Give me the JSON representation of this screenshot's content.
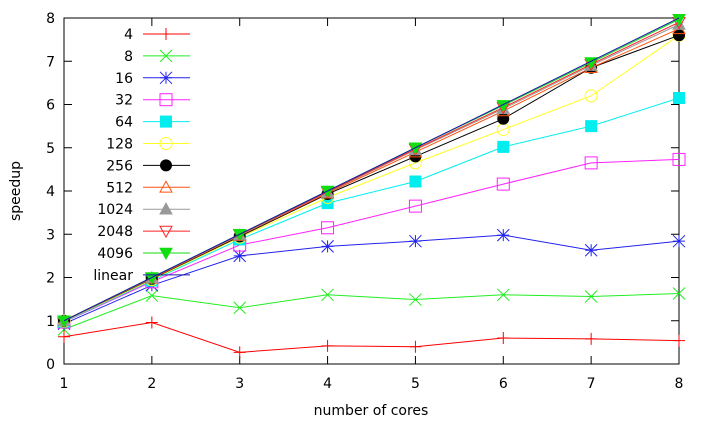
{
  "chart_data": {
    "type": "line",
    "xlabel": "number of cores",
    "ylabel": "speedup",
    "xlim": [
      1,
      8
    ],
    "ylim": [
      0,
      8
    ],
    "xticks": [
      1,
      2,
      3,
      4,
      5,
      6,
      7,
      8
    ],
    "yticks": [
      0,
      1,
      2,
      3,
      4,
      5,
      6,
      7,
      8
    ],
    "grid": false,
    "legend_position": "top-left",
    "x": [
      1,
      2,
      3,
      4,
      5,
      6,
      7,
      8
    ],
    "series": [
      {
        "name": "4",
        "color": "#ff0000",
        "marker": "plus",
        "values": [
          0.63,
          0.96,
          0.27,
          0.42,
          0.4,
          0.6,
          0.58,
          0.54
        ]
      },
      {
        "name": "8",
        "color": "#22ee22",
        "marker": "cross",
        "values": [
          0.8,
          1.58,
          1.3,
          1.6,
          1.49,
          1.6,
          1.56,
          1.63
        ]
      },
      {
        "name": "16",
        "color": "#2222ee",
        "marker": "asterisk",
        "values": [
          0.93,
          1.82,
          2.5,
          2.72,
          2.84,
          2.98,
          2.63,
          2.84
        ]
      },
      {
        "name": "32",
        "color": "#ff22ff",
        "marker": "open-square",
        "values": [
          0.97,
          1.9,
          2.75,
          3.15,
          3.65,
          4.16,
          4.65,
          4.73
        ]
      },
      {
        "name": "64",
        "color": "#00eeee",
        "marker": "filled-square",
        "values": [
          0.98,
          1.93,
          2.88,
          3.72,
          4.22,
          5.02,
          5.5,
          6.15
        ]
      },
      {
        "name": "128",
        "color": "#ffff22",
        "marker": "open-circle",
        "values": [
          0.99,
          1.95,
          2.93,
          3.85,
          4.65,
          5.42,
          6.2,
          7.6
        ]
      },
      {
        "name": "256",
        "color": "#000000",
        "marker": "filled-circle",
        "values": [
          1.0,
          1.97,
          2.95,
          3.93,
          4.8,
          5.67,
          6.85,
          7.6
        ]
      },
      {
        "name": "512",
        "color": "#ff5511",
        "marker": "open-triangle",
        "values": [
          1.0,
          1.98,
          2.97,
          3.95,
          4.9,
          5.85,
          6.85,
          7.75
        ]
      },
      {
        "name": "1024",
        "color": "#999999",
        "marker": "filled-triangle",
        "values": [
          1.0,
          1.99,
          2.98,
          3.97,
          4.95,
          5.9,
          6.9,
          7.85
        ]
      },
      {
        "name": "2048",
        "color": "#ff2222",
        "marker": "open-down-triangle",
        "values": [
          1.0,
          1.99,
          2.99,
          3.98,
          4.97,
          5.93,
          6.93,
          7.9
        ]
      },
      {
        "name": "4096",
        "color": "#11dd11",
        "marker": "filled-down-triangle",
        "values": [
          1.0,
          2.0,
          3.0,
          4.0,
          5.0,
          5.98,
          6.97,
          7.97
        ]
      },
      {
        "name": "linear",
        "color": "#1a1aaa",
        "marker": "none",
        "values": [
          1,
          2,
          3,
          4,
          5,
          6,
          7,
          8
        ]
      }
    ]
  }
}
